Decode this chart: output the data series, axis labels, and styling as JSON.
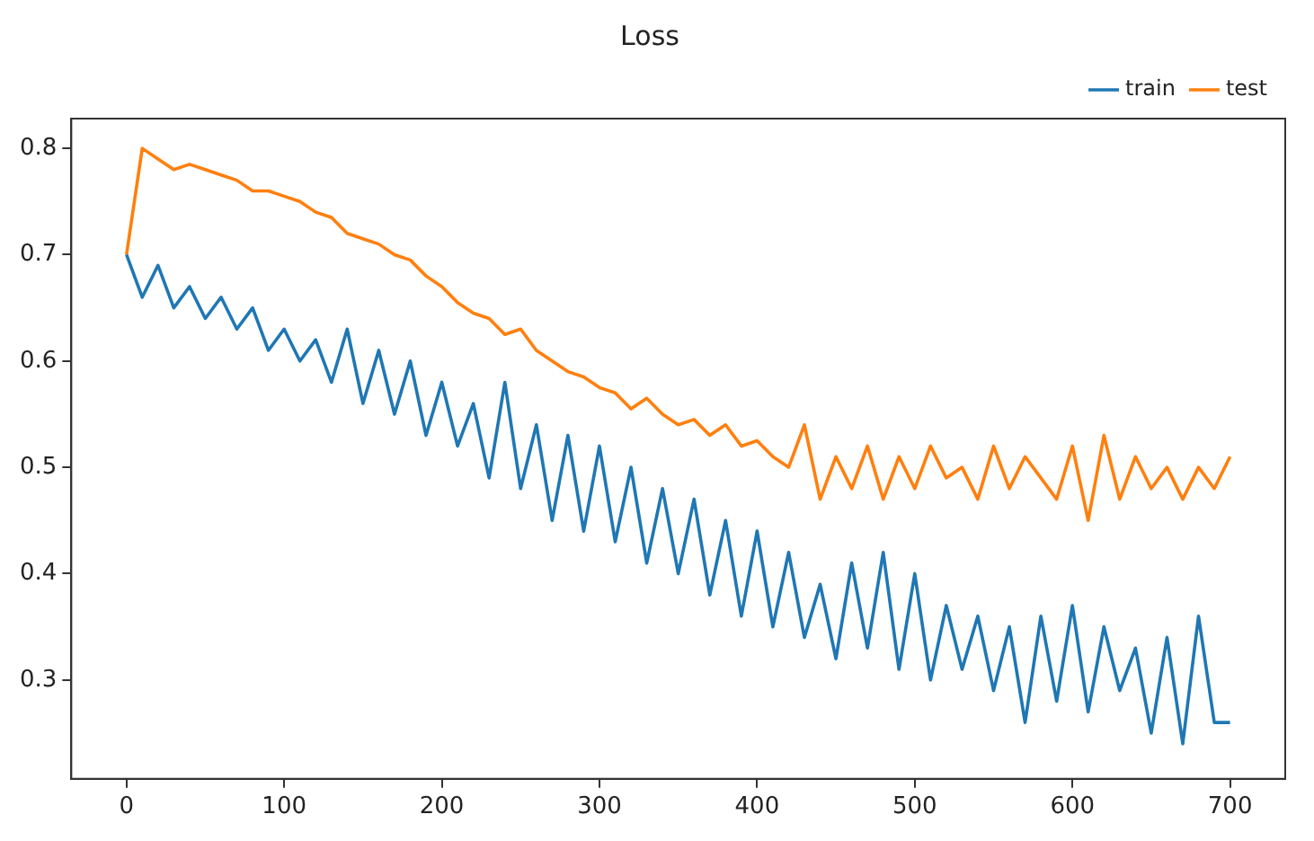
{
  "chart_data": {
    "type": "line",
    "title": "Loss",
    "x": [
      0,
      10,
      20,
      30,
      40,
      50,
      60,
      70,
      80,
      90,
      100,
      110,
      120,
      130,
      140,
      150,
      160,
      170,
      180,
      190,
      200,
      210,
      220,
      230,
      240,
      250,
      260,
      270,
      280,
      290,
      300,
      310,
      320,
      330,
      340,
      350,
      360,
      370,
      380,
      390,
      400,
      410,
      420,
      430,
      440,
      450,
      460,
      470,
      480,
      490,
      500,
      510,
      520,
      530,
      540,
      550,
      560,
      570,
      580,
      590,
      600,
      610,
      620,
      630,
      640,
      650,
      660,
      670,
      680,
      690,
      700
    ],
    "series": [
      {
        "name": "train",
        "color": "#1f77b4",
        "values": [
          0.7,
          0.66,
          0.69,
          0.65,
          0.67,
          0.64,
          0.66,
          0.63,
          0.65,
          0.61,
          0.63,
          0.6,
          0.62,
          0.58,
          0.63,
          0.56,
          0.61,
          0.55,
          0.6,
          0.53,
          0.58,
          0.52,
          0.56,
          0.49,
          0.58,
          0.48,
          0.54,
          0.45,
          0.53,
          0.44,
          0.52,
          0.43,
          0.5,
          0.41,
          0.48,
          0.4,
          0.47,
          0.38,
          0.45,
          0.36,
          0.44,
          0.35,
          0.42,
          0.34,
          0.39,
          0.32,
          0.41,
          0.33,
          0.42,
          0.31,
          0.4,
          0.3,
          0.37,
          0.31,
          0.36,
          0.29,
          0.35,
          0.26,
          0.36,
          0.28,
          0.37,
          0.27,
          0.35,
          0.29,
          0.33,
          0.25,
          0.34,
          0.24,
          0.36,
          0.26,
          0.26
        ]
      },
      {
        "name": "test",
        "color": "#ff7f0e",
        "values": [
          0.7,
          0.8,
          0.79,
          0.78,
          0.785,
          0.78,
          0.775,
          0.77,
          0.76,
          0.76,
          0.755,
          0.75,
          0.74,
          0.735,
          0.72,
          0.715,
          0.71,
          0.7,
          0.695,
          0.68,
          0.67,
          0.655,
          0.645,
          0.64,
          0.625,
          0.63,
          0.61,
          0.6,
          0.59,
          0.585,
          0.575,
          0.57,
          0.555,
          0.565,
          0.55,
          0.54,
          0.545,
          0.53,
          0.54,
          0.52,
          0.525,
          0.51,
          0.5,
          0.54,
          0.47,
          0.51,
          0.48,
          0.52,
          0.47,
          0.51,
          0.48,
          0.52,
          0.49,
          0.5,
          0.47,
          0.52,
          0.48,
          0.51,
          0.49,
          0.47,
          0.52,
          0.45,
          0.53,
          0.47,
          0.51,
          0.48,
          0.5,
          0.47,
          0.5,
          0.48,
          0.51
        ]
      }
    ],
    "xlim": [
      -35,
      735
    ],
    "xticks": [
      0,
      100,
      200,
      300,
      400,
      500,
      600,
      700
    ],
    "ylim": [
      0.207,
      0.828
    ],
    "yticks": [
      0.3,
      0.4,
      0.5,
      0.6,
      0.7,
      0.8
    ],
    "grid": false,
    "legend": "top right",
    "marker": "none",
    "line_style": "solid"
  }
}
